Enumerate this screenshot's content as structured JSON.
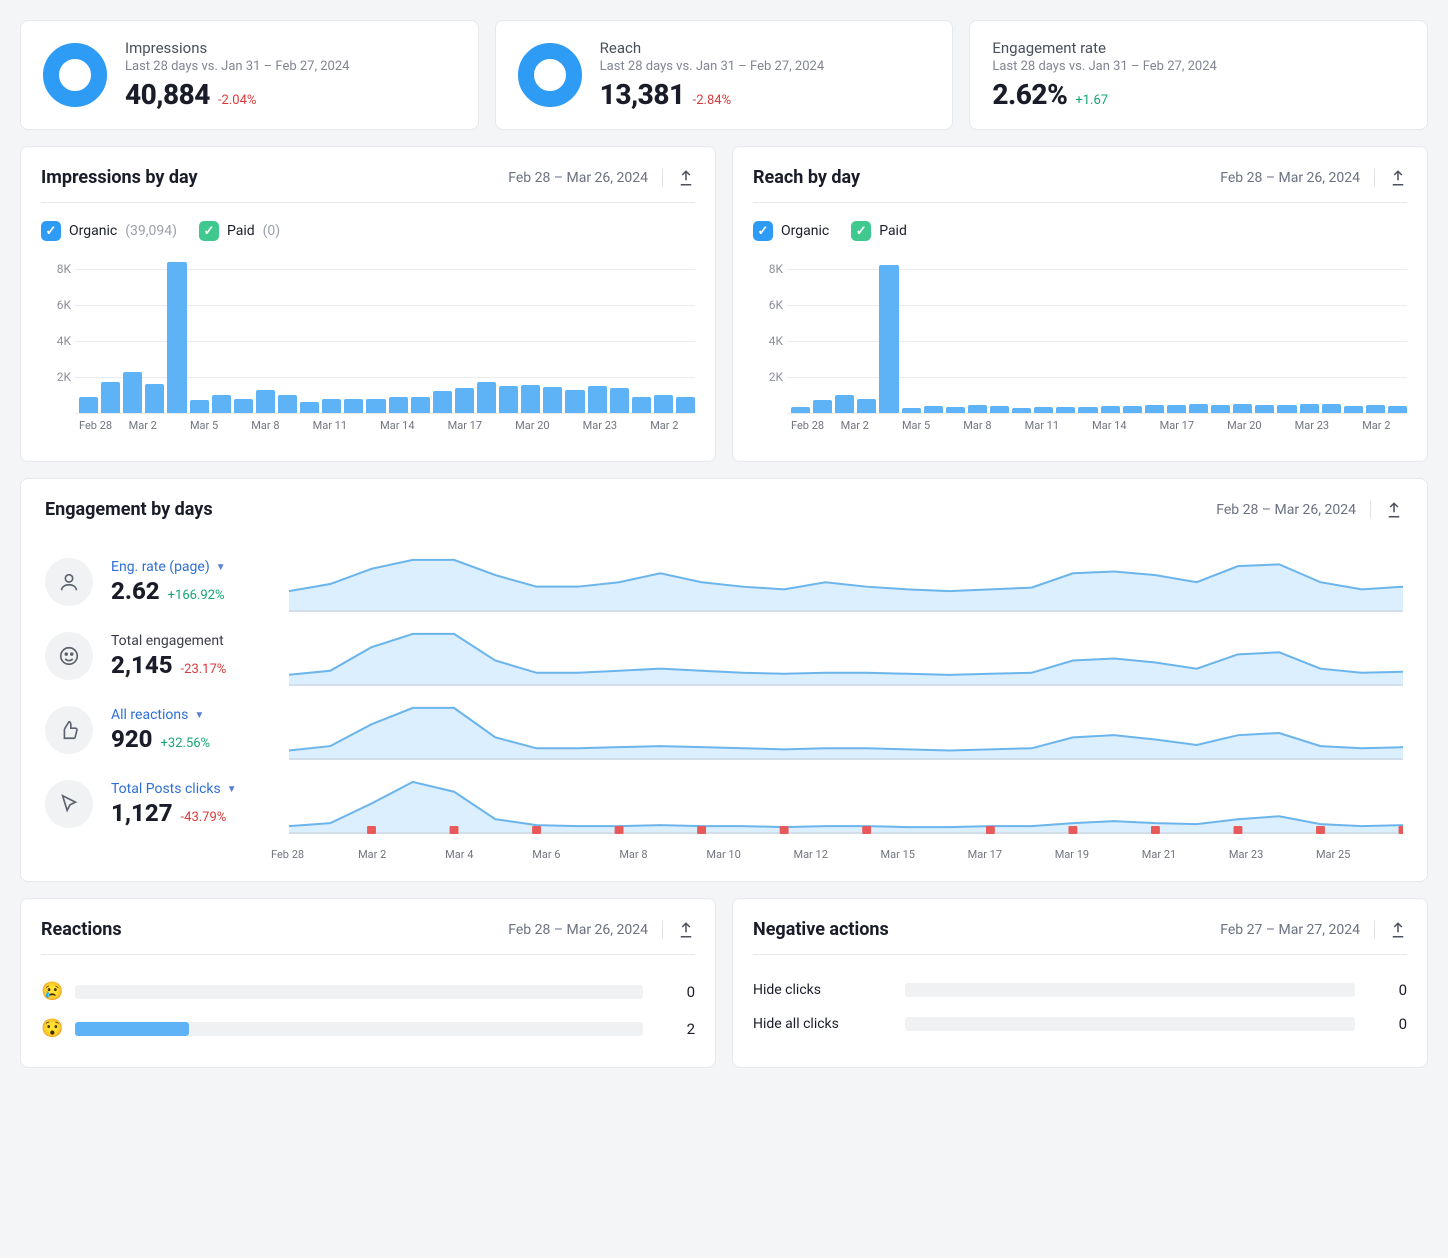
{
  "colors": {
    "organic_bar": "#5eb3f6",
    "donut": "#2e9cf5",
    "grid": "#ececf0",
    "spark_line": "#6bb5ec",
    "spark_fill": "#dcefff",
    "marker": "#e85a5a",
    "pos": "#17a673",
    "neg": "#d93a3a"
  },
  "summary": [
    {
      "title": "Impressions",
      "subtitle": "Last 28 days vs. Jan 31 – Feb 27, 2024",
      "value": "40,884",
      "delta": "-2.04%",
      "delta_sign": "neg",
      "has_donut": true
    },
    {
      "title": "Reach",
      "subtitle": "Last 28 days vs. Jan 31 – Feb 27, 2024",
      "value": "13,381",
      "delta": "-2.84%",
      "delta_sign": "neg",
      "has_donut": true
    },
    {
      "title": "Engagement rate",
      "subtitle": "Last 28 days vs. Jan 31 – Feb 27, 2024",
      "value": "2.62%",
      "delta": "+1.67",
      "delta_sign": "pos",
      "has_donut": false
    }
  ],
  "impressions_by_day": {
    "title": "Impressions by day",
    "date_range": "Feb 28 – Mar 26, 2024",
    "legend": {
      "organic_label": "Organic",
      "organic_count": "(39,094)",
      "paid_label": "Paid",
      "paid_count": "(0)"
    },
    "chart": {
      "type": "bar",
      "ymax": 9000,
      "yticks": [
        0,
        2000,
        4000,
        6000,
        8000
      ],
      "ytick_labels": [
        "",
        "2K",
        "4K",
        "6K",
        "8K"
      ],
      "values": [
        900,
        1700,
        2300,
        1600,
        8400,
        700,
        1000,
        800,
        1300,
        1000,
        600,
        800,
        800,
        800,
        900,
        900,
        1200,
        1400,
        1700,
        1500,
        1550,
        1450,
        1300,
        1500,
        1400,
        900,
        1000,
        900
      ],
      "xlabels": [
        "Feb 28",
        "",
        "Mar 2",
        "",
        "",
        "Mar 5",
        "",
        "",
        "Mar 8",
        "",
        "",
        "Mar 11",
        "",
        "",
        "Mar 14",
        "",
        "",
        "Mar 17",
        "",
        "",
        "Mar 20",
        "",
        "",
        "Mar 23",
        "",
        "",
        "Mar 2",
        ""
      ]
    }
  },
  "reach_by_day": {
    "title": "Reach by day",
    "date_range": "Feb 28 – Mar 26, 2024",
    "legend": {
      "organic_label": "Organic",
      "paid_label": "Paid"
    },
    "chart": {
      "type": "bar",
      "ymax": 9000,
      "yticks": [
        0,
        2000,
        4000,
        6000,
        8000
      ],
      "ytick_labels": [
        "",
        "2K",
        "4K",
        "6K",
        "8K"
      ],
      "values": [
        350,
        700,
        1000,
        800,
        8200,
        300,
        400,
        350,
        450,
        400,
        300,
        350,
        350,
        350,
        400,
        400,
        450,
        450,
        500,
        450,
        480,
        460,
        450,
        500,
        480,
        400,
        420,
        400
      ],
      "xlabels": [
        "Feb 28",
        "",
        "Mar 2",
        "",
        "",
        "Mar 5",
        "",
        "",
        "Mar 8",
        "",
        "",
        "Mar 11",
        "",
        "",
        "Mar 14",
        "",
        "",
        "Mar 17",
        "",
        "",
        "Mar 20",
        "",
        "",
        "Mar 23",
        "",
        "",
        "Mar 2",
        ""
      ]
    }
  },
  "engagement": {
    "title": "Engagement by days",
    "date_range": "Feb 28 – Mar 26, 2024",
    "rows": [
      {
        "icon": "person",
        "label": "Eng. rate (page)",
        "link": true,
        "value": "2.62",
        "delta": "+166.92%",
        "delta_sign": "pos",
        "spark": [
          20,
          28,
          45,
          55,
          55,
          38,
          25,
          25,
          30,
          40,
          30,
          25,
          22,
          30,
          25,
          22,
          20,
          22,
          24,
          40,
          42,
          38,
          30,
          48,
          50,
          30,
          22,
          25
        ]
      },
      {
        "icon": "face",
        "label": "Total engagement",
        "link": false,
        "value": "2,145",
        "delta": "-23.17%",
        "delta_sign": "neg",
        "spark": [
          8,
          12,
          35,
          48,
          48,
          22,
          10,
          10,
          12,
          14,
          12,
          10,
          9,
          10,
          10,
          9,
          8,
          9,
          10,
          22,
          24,
          20,
          14,
          28,
          30,
          14,
          10,
          11
        ]
      },
      {
        "icon": "thumb",
        "label": "All reactions",
        "link": true,
        "value": "920",
        "delta": "+32.56%",
        "delta_sign": "pos",
        "spark": [
          6,
          10,
          30,
          45,
          45,
          18,
          8,
          8,
          9,
          10,
          9,
          8,
          7,
          8,
          8,
          7,
          6,
          7,
          8,
          18,
          20,
          16,
          11,
          20,
          22,
          10,
          8,
          9
        ]
      },
      {
        "icon": "cursor",
        "label": "Total Posts clicks",
        "link": true,
        "value": "1,127",
        "delta": "-43.79%",
        "delta_sign": "neg",
        "spark": [
          5,
          8,
          28,
          50,
          40,
          12,
          6,
          5,
          5,
          6,
          5,
          5,
          4,
          5,
          5,
          4,
          4,
          5,
          5,
          8,
          10,
          8,
          7,
          12,
          15,
          7,
          5,
          6
        ],
        "markers": [
          2,
          4,
          6,
          8,
          10,
          12,
          14,
          17,
          19,
          21,
          23,
          25,
          27
        ]
      }
    ],
    "xaxis": [
      "Feb 28",
      "Mar 2",
      "Mar 4",
      "Mar 6",
      "Mar 8",
      "Mar 10",
      "Mar 12",
      "Mar 15",
      "Mar 17",
      "Mar 19",
      "Mar 21",
      "Mar 23",
      "Mar 25"
    ]
  },
  "reactions": {
    "title": "Reactions",
    "date_range": "Feb 28 – Mar 26, 2024",
    "items": [
      {
        "emoji": "😢",
        "value": 0,
        "max": 10
      },
      {
        "emoji": "😯",
        "value": 2,
        "max": 10
      }
    ]
  },
  "negative": {
    "title": "Negative actions",
    "date_range": "Feb 27 – Mar 27, 2024",
    "items": [
      {
        "label": "Hide clicks",
        "value": 0,
        "max": 10
      },
      {
        "label": "Hide all clicks",
        "value": 0,
        "max": 10
      }
    ]
  }
}
